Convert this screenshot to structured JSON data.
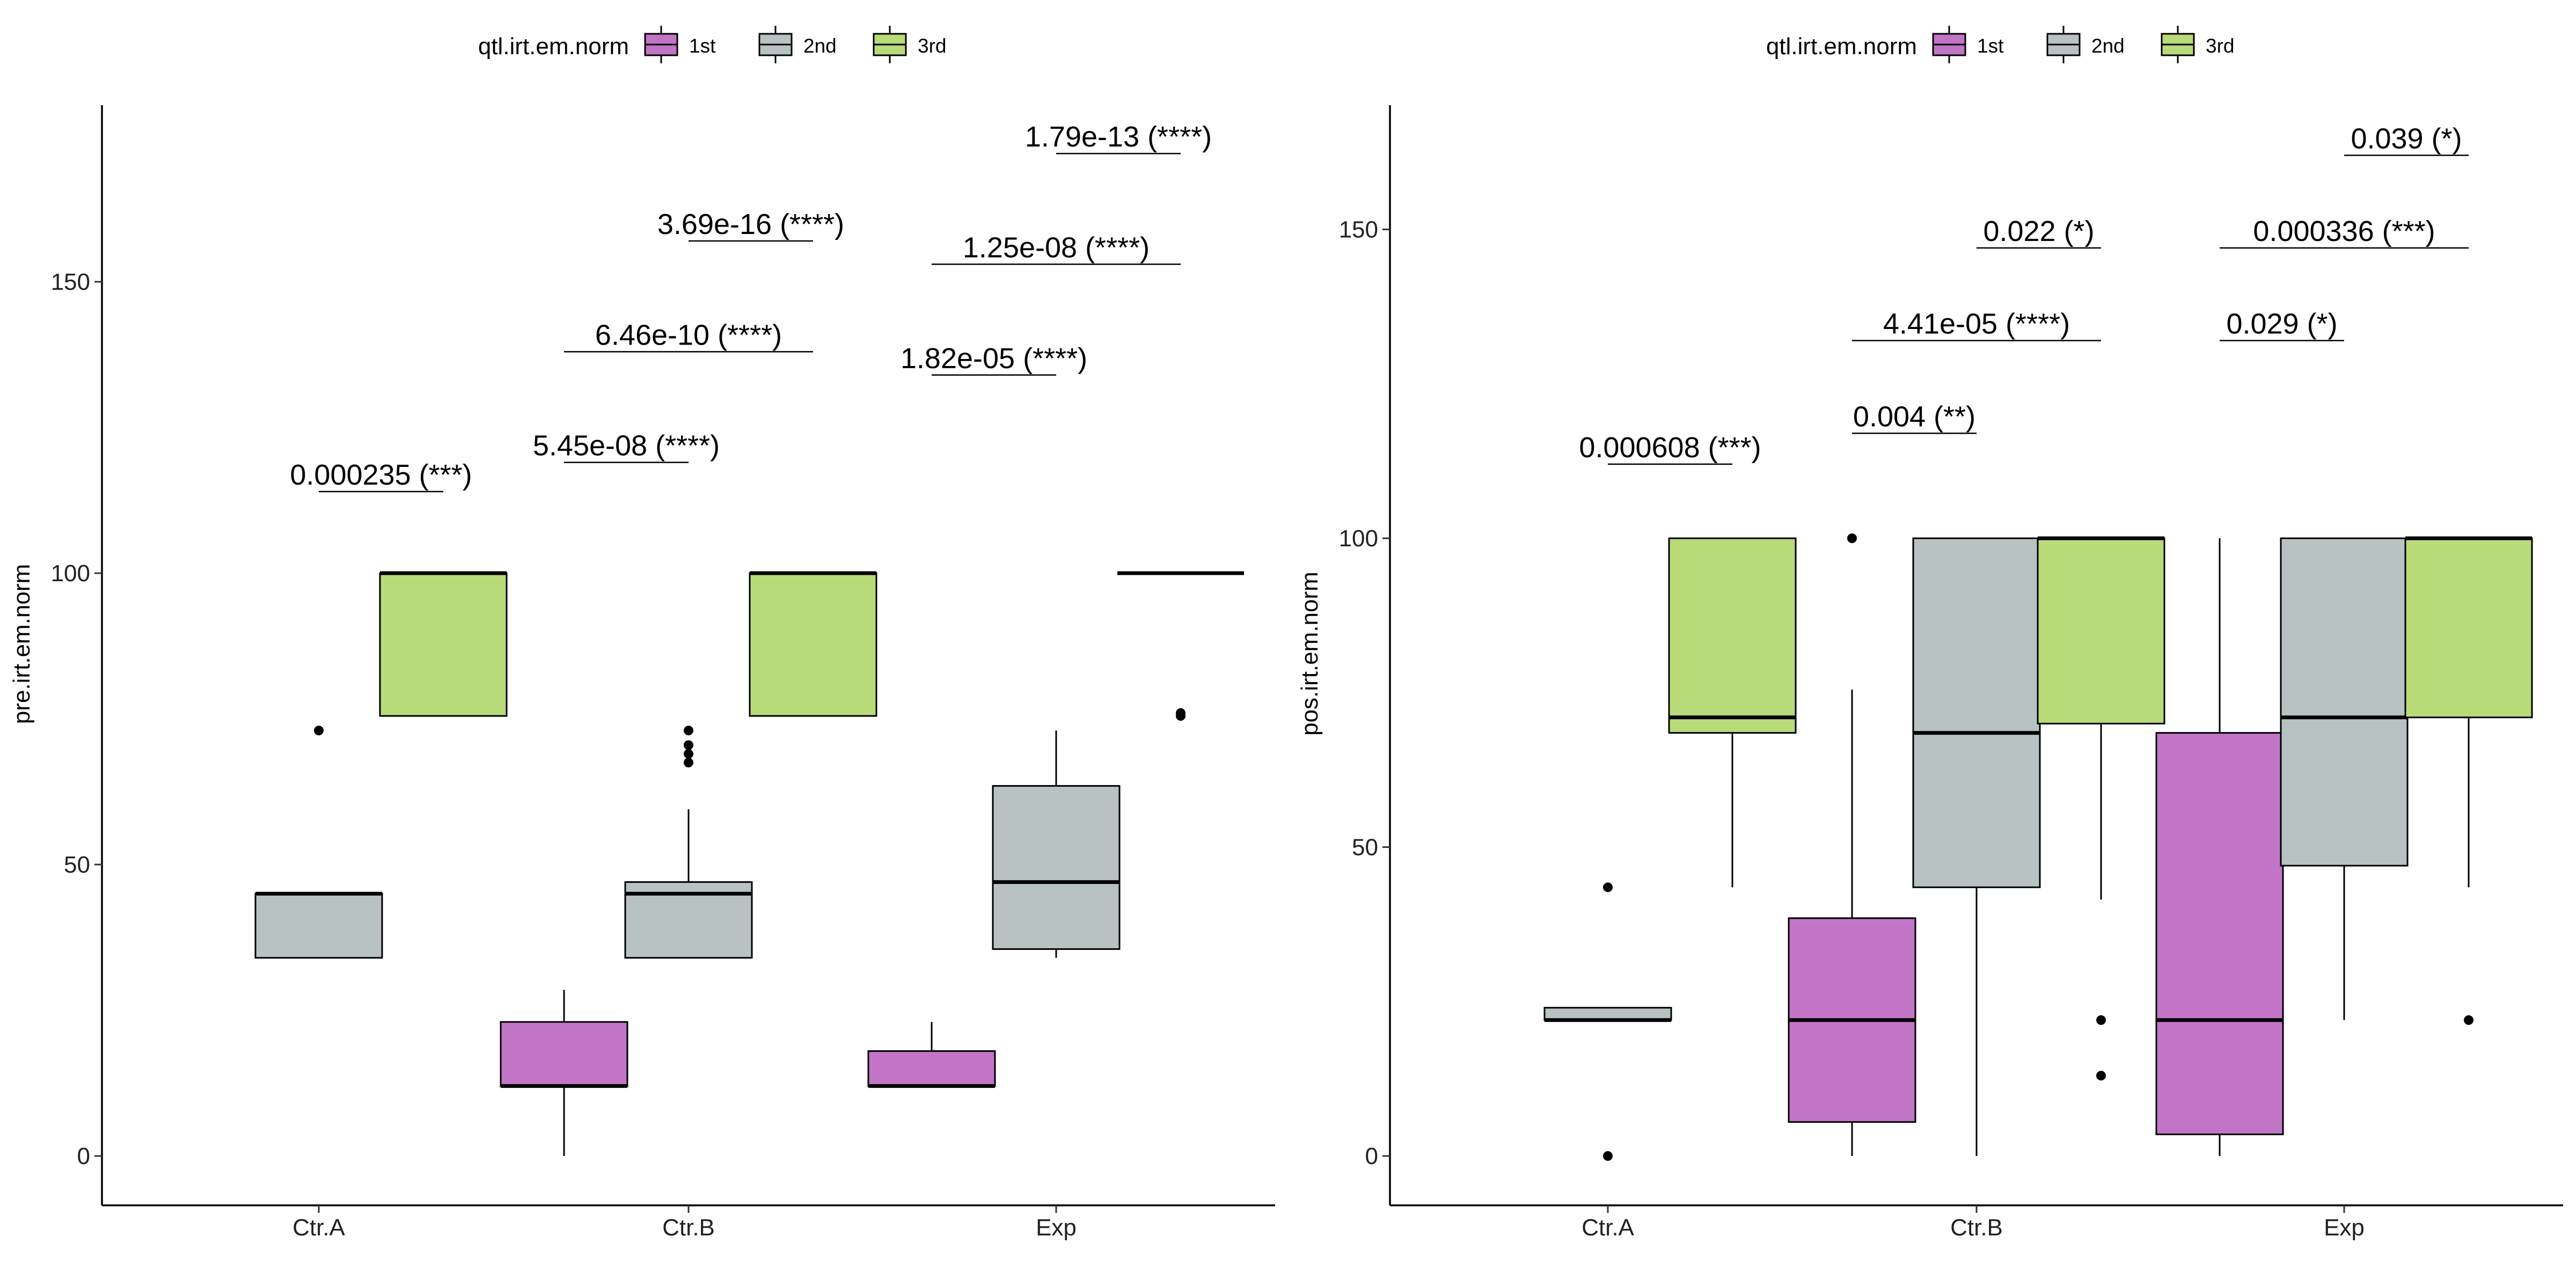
{
  "chart_data": [
    {
      "type": "box",
      "xlabel": "",
      "ylabel": "pre.irt.em.norm",
      "ylim": [
        -10,
        178
      ],
      "yticks": [
        0,
        50,
        100,
        150
      ],
      "categories": [
        "Ctr.A",
        "Ctr.B",
        "Exp"
      ],
      "legend": {
        "title": "qtl.irt.em.norm",
        "position": "top",
        "entries": [
          {
            "name": "1st",
            "color": "#c275c6"
          },
          {
            "name": "2nd",
            "color": "#b9c2c3"
          },
          {
            "name": "3rd",
            "color": "#b8da78"
          }
        ]
      },
      "boxes": [
        {
          "category": "Ctr.A",
          "group": "2nd",
          "min": 34,
          "q1": 34,
          "median": 45,
          "q3": 45,
          "max": 45,
          "outliers": [
            73
          ]
        },
        {
          "category": "Ctr.A",
          "group": "3rd",
          "min": 75.5,
          "q1": 75.5,
          "median": 100,
          "q3": 100,
          "max": 100,
          "outliers": []
        },
        {
          "category": "Ctr.B",
          "group": "1st",
          "min": 0,
          "q1": 12,
          "median": 12,
          "q3": 23,
          "max": 28.5,
          "outliers": []
        },
        {
          "category": "Ctr.B",
          "group": "2nd",
          "min": 34,
          "q1": 34,
          "median": 45,
          "q3": 47,
          "max": 59.5,
          "outliers": [
            67.5,
            69,
            70.5,
            73
          ]
        },
        {
          "category": "Ctr.B",
          "group": "3rd",
          "min": 75.5,
          "q1": 75.5,
          "median": 100,
          "q3": 100,
          "max": 100,
          "outliers": []
        },
        {
          "category": "Exp",
          "group": "1st",
          "min": 12,
          "q1": 12,
          "median": 12,
          "q3": 18,
          "max": 23,
          "outliers": []
        },
        {
          "category": "Exp",
          "group": "2nd",
          "min": 34,
          "q1": 35.5,
          "median": 47,
          "q3": 63.5,
          "max": 73,
          "outliers": []
        },
        {
          "category": "Exp",
          "group": "3rd",
          "min": 100,
          "q1": 100,
          "median": 100,
          "q3": 100,
          "max": 100,
          "outliers": [
            75.5,
            76
          ]
        }
      ],
      "annotations": [
        {
          "category": "Ctr.A",
          "from": "2nd",
          "to": "3rd",
          "y": 114,
          "label": "0.000235 (***)"
        },
        {
          "category": "Ctr.B",
          "from": "1st",
          "to": "2nd",
          "y": 119,
          "label": "5.45e-08 (****)"
        },
        {
          "category": "Ctr.B",
          "from": "1st",
          "to": "3rd",
          "y": 138,
          "label": "6.46e-10 (****)"
        },
        {
          "category": "Ctr.B",
          "from": "2nd",
          "to": "3rd",
          "y": 157,
          "label": "3.69e-16 (****)"
        },
        {
          "category": "Exp",
          "from": "1st",
          "to": "2nd",
          "y": 134,
          "label": "1.82e-05 (****)"
        },
        {
          "category": "Exp",
          "from": "1st",
          "to": "3rd",
          "y": 153,
          "label": "1.25e-08 (****)"
        },
        {
          "category": "Exp",
          "from": "2nd",
          "to": "3rd",
          "y": 172,
          "label": "1.79e-13 (****)"
        }
      ]
    },
    {
      "type": "box",
      "xlabel": "",
      "ylabel": "pos.irt.em.norm",
      "ylim": [
        -8,
        170
      ],
      "yticks": [
        0,
        50,
        100,
        150
      ],
      "categories": [
        "Ctr.A",
        "Ctr.B",
        "Exp"
      ],
      "legend": {
        "title": "qtl.irt.em.norm",
        "position": "top",
        "entries": [
          {
            "name": "1st",
            "color": "#c275c6"
          },
          {
            "name": "2nd",
            "color": "#b9c2c3"
          },
          {
            "name": "3rd",
            "color": "#b8da78"
          }
        ]
      },
      "boxes": [
        {
          "category": "Ctr.A",
          "group": "2nd",
          "min": 22,
          "q1": 22,
          "median": 22,
          "q3": 24,
          "max": 24,
          "outliers": [
            0,
            43.5
          ]
        },
        {
          "category": "Ctr.A",
          "group": "3rd",
          "min": 43.5,
          "q1": 68.5,
          "median": 71,
          "q3": 100,
          "max": 100,
          "outliers": []
        },
        {
          "category": "Ctr.B",
          "group": "1st",
          "min": 0,
          "q1": 5.5,
          "median": 22,
          "q3": 38.5,
          "max": 75.5,
          "outliers": [
            100
          ]
        },
        {
          "category": "Ctr.B",
          "group": "2nd",
          "min": 0,
          "q1": 43.5,
          "median": 68.5,
          "q3": 100,
          "max": 100,
          "outliers": []
        },
        {
          "category": "Ctr.B",
          "group": "3rd",
          "min": 41.5,
          "q1": 70,
          "median": 100,
          "q3": 100,
          "max": 100,
          "outliers": [
            13,
            22
          ]
        },
        {
          "category": "Exp",
          "group": "1st",
          "min": 0,
          "q1": 3.5,
          "median": 22,
          "q3": 68.5,
          "max": 100,
          "outliers": []
        },
        {
          "category": "Exp",
          "group": "2nd",
          "min": 22,
          "q1": 47,
          "median": 71,
          "q3": 100,
          "max": 100,
          "outliers": []
        },
        {
          "category": "Exp",
          "group": "3rd",
          "min": 43.5,
          "q1": 71,
          "median": 100,
          "q3": 100,
          "max": 100,
          "outliers": [
            22
          ]
        }
      ],
      "annotations": [
        {
          "category": "Ctr.A",
          "from": "2nd",
          "to": "3rd",
          "y": 112,
          "label": "0.000608 (***)"
        },
        {
          "category": "Ctr.B",
          "from": "1st",
          "to": "2nd",
          "y": 117,
          "label": "0.004 (**)"
        },
        {
          "category": "Ctr.B",
          "from": "1st",
          "to": "3rd",
          "y": 132,
          "label": "4.41e-05 (****)"
        },
        {
          "category": "Ctr.B",
          "from": "2nd",
          "to": "3rd",
          "y": 147,
          "label": "0.022 (*)"
        },
        {
          "category": "Exp",
          "from": "1st",
          "to": "2nd",
          "y": 132,
          "label": "0.029 (*)"
        },
        {
          "category": "Exp",
          "from": "1st",
          "to": "3rd",
          "y": 147,
          "label": "0.000336 (***)"
        },
        {
          "category": "Exp",
          "from": "2nd",
          "to": "3rd",
          "y": 162,
          "label": "0.039 (*)"
        }
      ]
    }
  ]
}
